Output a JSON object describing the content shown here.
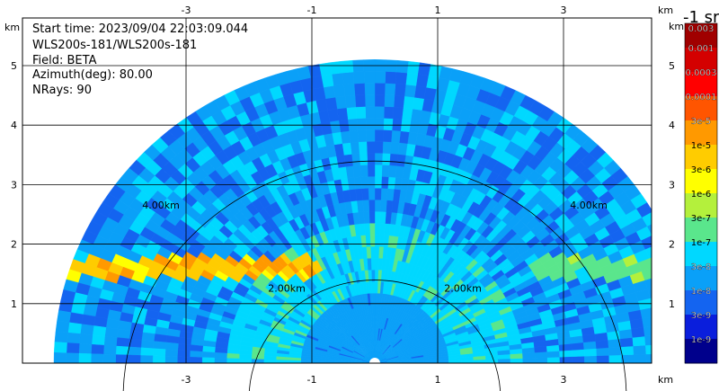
{
  "info": {
    "start_time": "Start time: 2023/09/04 22:03:09.044",
    "instrument": "WLS200s-181/WLS200s-181",
    "field": "Field: BETA",
    "azimuth": "Azimuth(deg): 80.00",
    "nrays": "NRays: 90"
  },
  "colorbar": {
    "unit_label": "-1 sr",
    "top_partial_label": "0.003",
    "labels": [
      "0.001",
      "0.0003",
      "0.0001",
      "3e-5",
      "1e-5",
      "3e-6",
      "1e-6",
      "3e-7",
      "1e-7",
      "3e-8",
      "1e-8",
      "3e-9",
      "1e-9"
    ],
    "colors": [
      "#a00000",
      "#d40000",
      "#ff0000",
      "#ff5500",
      "#ff9900",
      "#ffcc00",
      "#ffff00",
      "#b4f03c",
      "#5ae68c",
      "#00d8ff",
      "#0aa0f8",
      "#1464f0",
      "#0a1edc",
      "#00008c"
    ]
  },
  "chart_data": {
    "type": "heatmap",
    "title": "",
    "xlabel": "km",
    "ylabel": "km",
    "x_ticks": [
      -3,
      -1,
      1,
      3
    ],
    "y_ticks": [
      1,
      2,
      3,
      4,
      5
    ],
    "xlim": [
      -5.6,
      4.4
    ],
    "ylim": [
      0,
      5.8
    ],
    "max_range_km": 5.1,
    "range_ring_labels": [
      "2.00km",
      "2.00km",
      "4.00km",
      "4.00km"
    ],
    "colorscale": "log",
    "color_range": [
      1e-09,
      0.003
    ],
    "features": {
      "background_level": "3e-8",
      "inner_zone_level": "1e-7",
      "left_layer_level": "1e-5",
      "right_layer_level": "3e-7",
      "layer_height_km": 1.6
    }
  }
}
